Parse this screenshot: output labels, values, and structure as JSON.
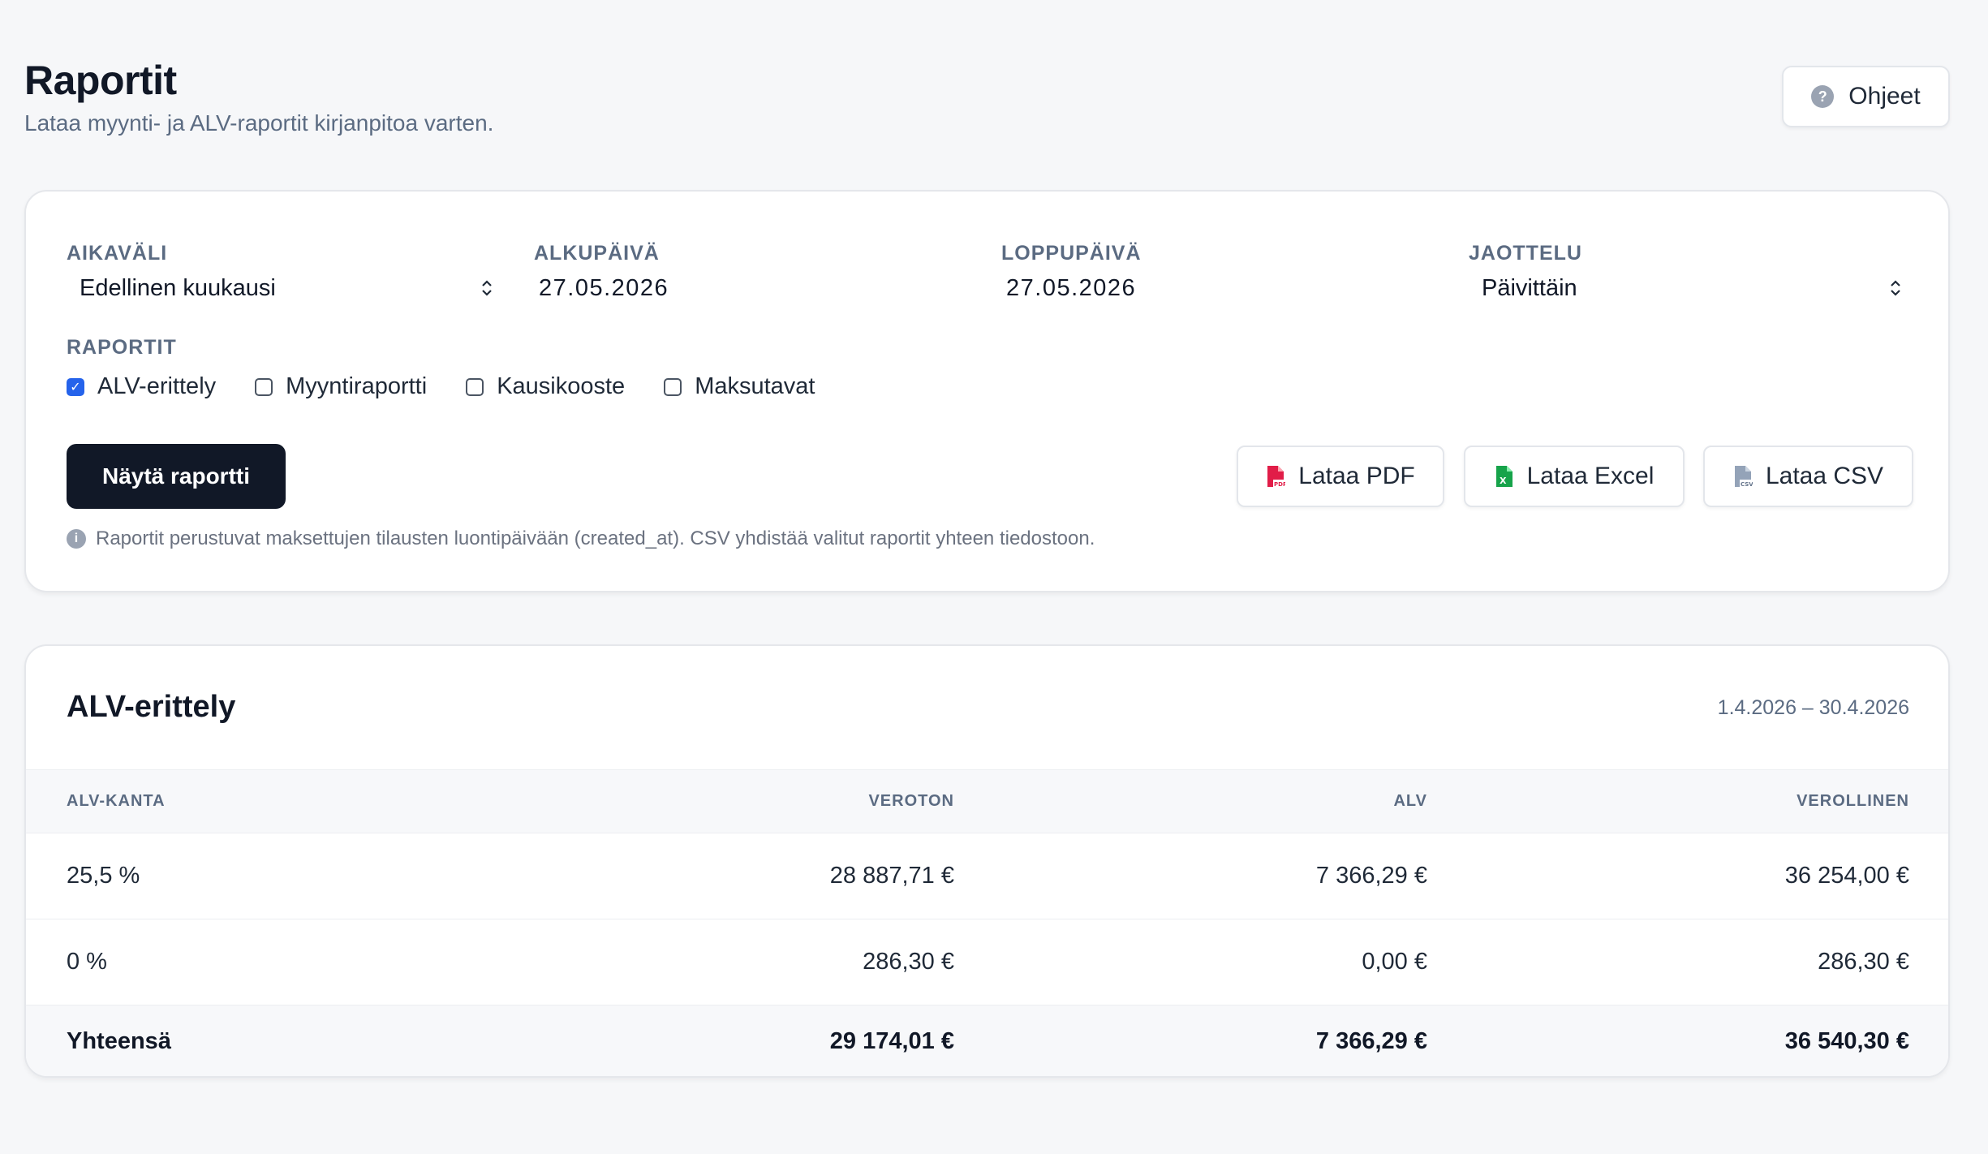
{
  "header": {
    "title": "Raportit",
    "subtitle": "Lataa myynti- ja ALV-raportit kirjanpitoa varten.",
    "help_label": "Ohjeet",
    "help_icon": "question-circle-icon"
  },
  "filters": {
    "range": {
      "label": "AIKAVÄLI",
      "value": "Edellinen kuukausi"
    },
    "start": {
      "label": "ALKUPÄIVÄ",
      "value": "27.05.2026"
    },
    "end": {
      "label": "LOPPUPÄIVÄ",
      "value": "27.05.2026"
    },
    "grouping": {
      "label": "JAOTTELU",
      "value": "Päivittäin"
    },
    "reports_label": "RAPORTIT",
    "reports": [
      {
        "label": "ALV-erittely",
        "checked": true
      },
      {
        "label": "Myyntiraportti",
        "checked": false
      },
      {
        "label": "Kausikooste",
        "checked": false
      },
      {
        "label": "Maksutavat",
        "checked": false
      }
    ],
    "show_button": "Näytä raportti",
    "download_pdf": "Lataa PDF",
    "download_excel": "Lataa Excel",
    "download_csv": "Lataa CSV",
    "note": "Raportit perustuvat maksettujen tilausten luontipäivään (created_at). CSV yhdistää valitut raportit yhteen tiedostoon."
  },
  "report": {
    "title": "ALV-erittely",
    "range": "1.4.2026 – 30.4.2026",
    "columns": [
      "ALV-KANTA",
      "VEROTON",
      "ALV",
      "VEROLLINEN"
    ],
    "rows": [
      [
        "25,5 %",
        "28 887,71 €",
        "7 366,29 €",
        "36 254,00 €"
      ],
      [
        "0 %",
        "286,30 €",
        "0,00 €",
        "286,30 €"
      ]
    ],
    "total": [
      "Yhteensä",
      "29 174,01 €",
      "7 366,29 €",
      "36 540,30 €"
    ]
  },
  "colors": {
    "primary": "#111827",
    "accent_checkbox": "#2563eb",
    "pdf_icon": "#e11d48",
    "excel_icon": "#16a34a",
    "csv_icon": "#94a3b8"
  }
}
